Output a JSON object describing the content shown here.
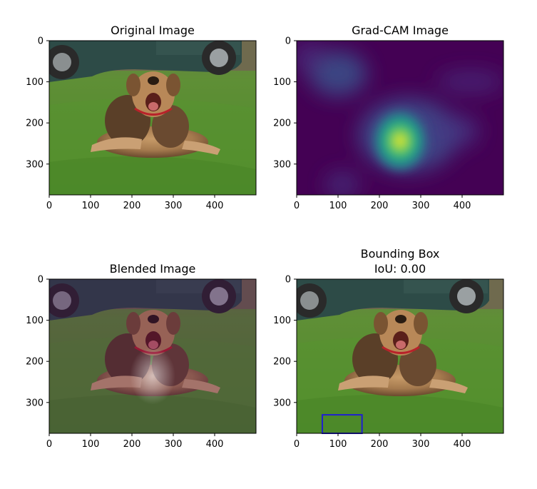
{
  "figure": {
    "panels": [
      {
        "id": "original",
        "title_lines": [
          "Original Image"
        ],
        "kind": "photo",
        "xticks": [
          "0",
          "100",
          "200",
          "300",
          "400"
        ],
        "yticks": [
          "0",
          "100",
          "200",
          "300"
        ]
      },
      {
        "id": "gradcam",
        "title_lines": [
          "Grad-CAM Image"
        ],
        "kind": "heatmap",
        "xticks": [
          "0",
          "100",
          "200",
          "300",
          "400"
        ],
        "yticks": [
          "0",
          "100",
          "200",
          "300"
        ]
      },
      {
        "id": "blended",
        "title_lines": [
          "Blended Image"
        ],
        "kind": "blended",
        "xticks": [
          "0",
          "100",
          "200",
          "300",
          "400"
        ],
        "yticks": [
          "0",
          "100",
          "200",
          "300"
        ]
      },
      {
        "id": "bbox",
        "title_lines": [
          "Bounding Box",
          "IoU: 0.00"
        ],
        "kind": "photo_bbox",
        "xticks": [
          "0",
          "100",
          "200",
          "300",
          "400"
        ],
        "yticks": [
          "0",
          "100",
          "200",
          "300"
        ]
      }
    ]
  },
  "chart_data": {
    "type": "heatmap",
    "image_size": {
      "width": 500,
      "height": 375
    },
    "xlim": [
      0,
      500
    ],
    "ylim": [
      375,
      0
    ],
    "xticks": [
      0,
      100,
      200,
      300,
      400
    ],
    "yticks": [
      0,
      100,
      200,
      300
    ],
    "heatmap_peak": {
      "x": 250,
      "y": 235
    },
    "bounding_box": {
      "x0": 62,
      "y0": 330,
      "x1": 158,
      "y1": 375,
      "color": "#1f1fd0"
    },
    "iou": 0.0
  },
  "colors": {
    "viridis_low": "#440154",
    "viridis_mid": "#21918c",
    "viridis_high": "#fde725",
    "grass": "#4e8a2c",
    "car": "#2c4a46",
    "dog_fur": "#b58a5c"
  }
}
